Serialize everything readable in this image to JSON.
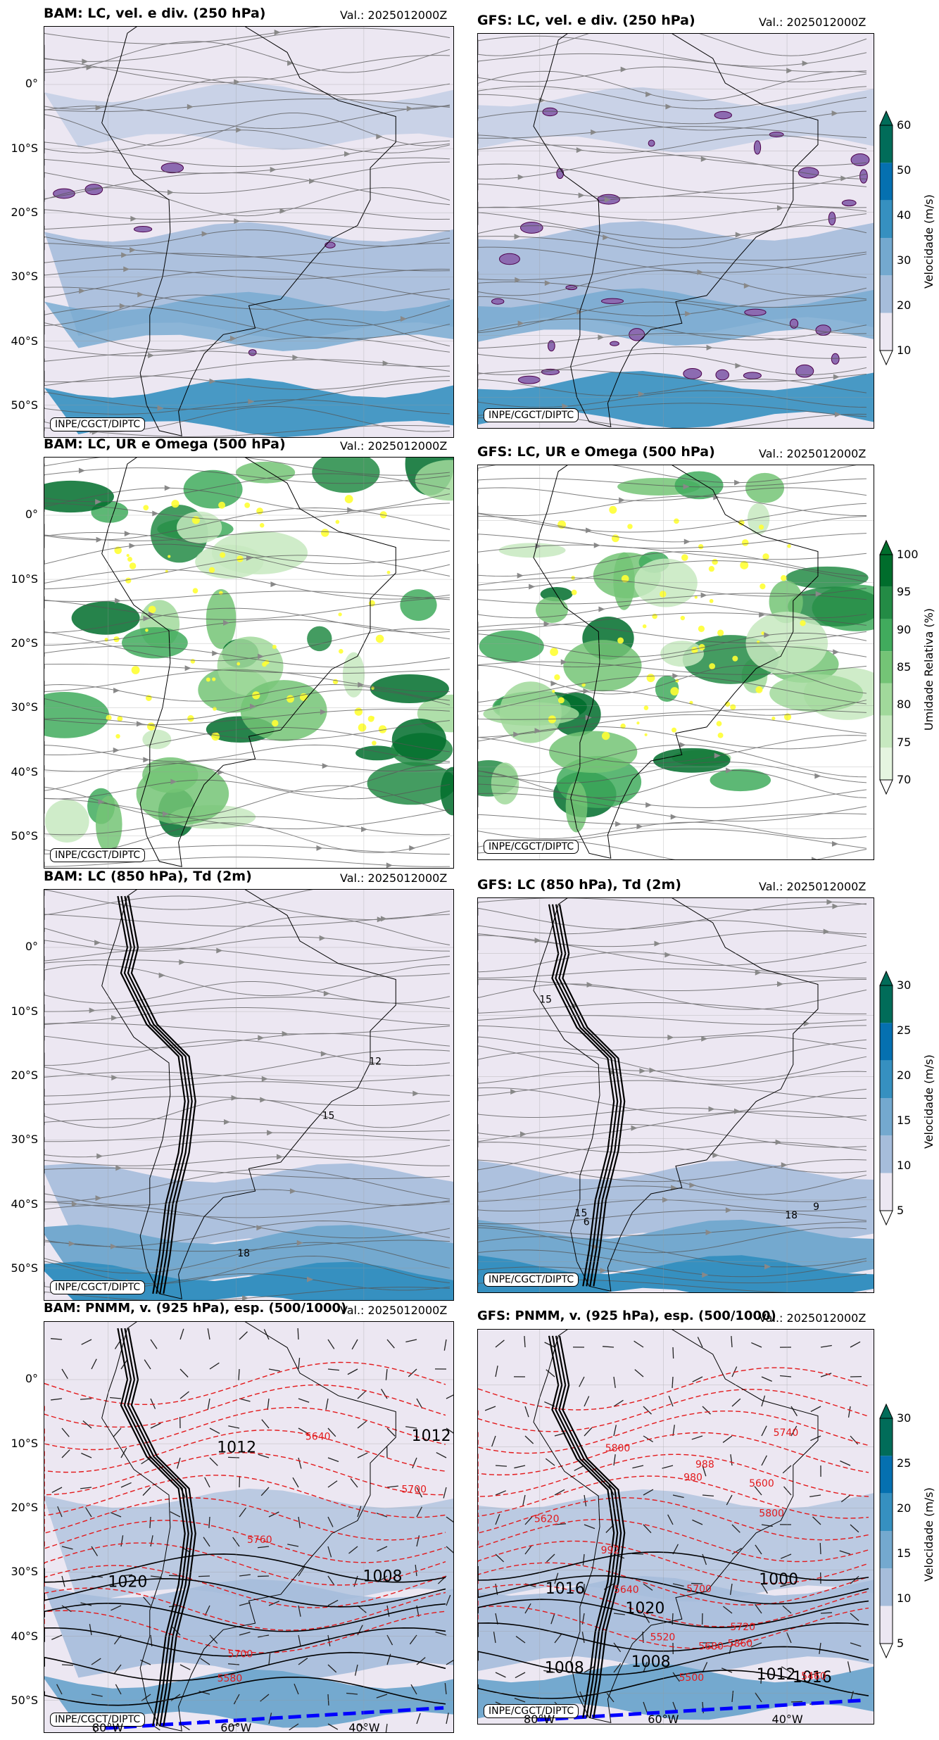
{
  "valid": "Val.: 2025012000Z",
  "credit": "INPE/CGCT/DIPTC",
  "lat_labels": [
    "0°",
    "10°S",
    "20°S",
    "30°S",
    "40°S",
    "50°S"
  ],
  "lon_labels": [
    "80°W",
    "60°W",
    "40°W"
  ],
  "panels": [
    {
      "title": "BAM: LC, vel. e div. (250 hPa)",
      "kind": "wind250"
    },
    {
      "title": "GFS: LC, vel. e div. (250 hPa)",
      "kind": "wind250"
    },
    {
      "title": "BAM: LC, UR e Omega (500 hPa)",
      "kind": "rh500"
    },
    {
      "title": "GFS: LC, UR e Omega (500 hPa)",
      "kind": "rh500"
    },
    {
      "title": "BAM: LC (850 hPa), Td (2m)",
      "kind": "wind850"
    },
    {
      "title": "GFS: LC (850 hPa), Td (2m)",
      "kind": "wind850"
    },
    {
      "title": "BAM: PNMM, v. (925 hPa), esp. (500/1000)",
      "kind": "pnmm"
    },
    {
      "title": "GFS: PNMM, v. (925 hPa), esp. (500/1000)",
      "kind": "pnmm"
    }
  ],
  "colorbars": [
    {
      "label": "Velocidade (m/s)",
      "ticks": [
        "10",
        "20",
        "30",
        "40",
        "50",
        "60"
      ],
      "colors": [
        "#ece7f2",
        "#a6bddb",
        "#74a9cf",
        "#3690c0",
        "#0570b0",
        "#016c59"
      ]
    },
    {
      "label": "Umidade Relativa (%)",
      "ticks": [
        "70",
        "75",
        "80",
        "85",
        "90",
        "95",
        "100"
      ],
      "colors": [
        "#e5f5e0",
        "#c7e9c0",
        "#a1d99b",
        "#74c476",
        "#41ab5d",
        "#238b45",
        "#006d2c"
      ]
    },
    {
      "label": "Velocidade (m/s)",
      "ticks": [
        "5",
        "10",
        "15",
        "20",
        "25",
        "30"
      ],
      "colors": [
        "#ece7f2",
        "#a6bddb",
        "#74a9cf",
        "#3690c0",
        "#0570b0",
        "#016c59"
      ]
    },
    {
      "label": "Velocidade (m/s)",
      "ticks": [
        "5",
        "10",
        "15",
        "20",
        "25",
        "30"
      ],
      "colors": [
        "#ece7f2",
        "#a6bddb",
        "#74a9cf",
        "#3690c0",
        "#0570b0",
        "#016c59"
      ]
    }
  ],
  "contour_labels": {
    "bam_850": [
      "15",
      "12",
      "18"
    ],
    "gfs_850": [
      "18",
      "15",
      "15",
      "9",
      "6"
    ],
    "bam_pnmm": [
      "5700",
      "5760",
      "5640",
      "1008",
      "5700",
      "1020",
      "1012",
      "1012",
      "5580"
    ],
    "gfs_pnmm": [
      "1016",
      "5740",
      "5800",
      "5800",
      "5860",
      "1008",
      "1012",
      "1016",
      "1020",
      "5720",
      "5700",
      "5680",
      "5620",
      "5640",
      "5500",
      "5460",
      "5600",
      "5520",
      "1008",
      "1000",
      "992",
      "988",
      "980"
    ]
  },
  "chart_data": {
    "type": "heatmap",
    "colorbars": [
      {
        "label": "Velocidade (m/s)",
        "levels": [
          10,
          20,
          30,
          40,
          50,
          60
        ]
      },
      {
        "label": "Umidade Relativa (%)",
        "levels": [
          70,
          75,
          80,
          85,
          90,
          95,
          100
        ]
      },
      {
        "label": "Velocidade (m/s)",
        "levels": [
          5,
          10,
          15,
          20,
          25,
          30
        ]
      },
      {
        "label": "Velocidade (m/s)",
        "levels": [
          5,
          10,
          15,
          20,
          25,
          30
        ]
      }
    ],
    "lat_ticks": [
      "0°",
      "10°S",
      "20°S",
      "30°S",
      "40°S",
      "50°S"
    ],
    "lon_ticks": [
      "80°W",
      "60°W",
      "40°W"
    ]
  }
}
